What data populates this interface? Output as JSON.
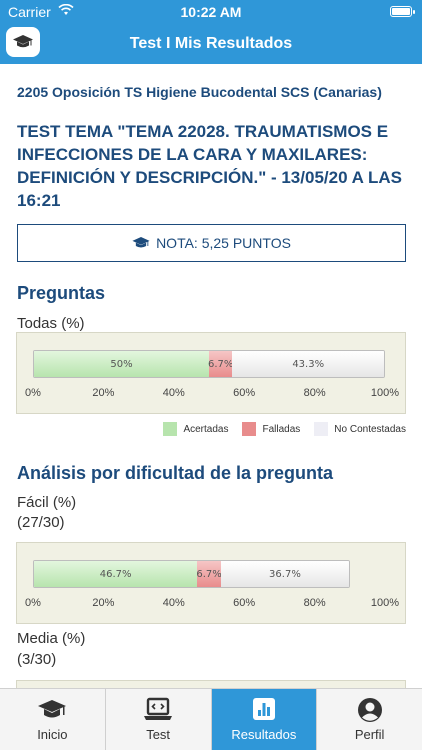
{
  "status": {
    "carrier": "Carrier",
    "time": "10:22 AM"
  },
  "nav": {
    "title": "Test I Mis Resultados",
    "home_icon": "mortarboard-icon"
  },
  "course": "2205 Oposición TS Higiene Bucodental SCS (Canarias)",
  "test_title": "TEST TEMA \"TEMA 22028. TRAUMATISMOS E INFECCIONES DE LA CARA Y MAXILARES: DEFINICIÓN Y DESCRIPCIÓN.\" - 13/05/20 A LAS 16:21",
  "nota": "NOTA: 5,25 PUNTOS",
  "preguntas": {
    "heading": "Preguntas",
    "label": "Todas (%)"
  },
  "legend": {
    "acertadas": "Acertadas",
    "falladas": "Falladas",
    "no_contestadas": "No Contestadas"
  },
  "dificultad": {
    "heading": "Análisis por dificultad de la pregunta",
    "facil_label": "Fácil (%)",
    "facil_count": "(27/30)",
    "media_label": "Media (%)",
    "media_count": "(3/30)"
  },
  "colors": {
    "acertadas": "#b7e4ad",
    "falladas": "#e88c8c",
    "no_contestadas": "#eeeef5",
    "primary": "#2f97d8",
    "text": "#1d4b7c"
  },
  "chart_data": [
    {
      "type": "bar",
      "orientation": "horizontal-stacked",
      "categories": [
        "Todas"
      ],
      "series": [
        {
          "name": "Acertadas",
          "values": [
            50
          ],
          "label": "50%"
        },
        {
          "name": "Falladas",
          "values": [
            6.7
          ],
          "label": "6.7%"
        },
        {
          "name": "No Contestadas",
          "values": [
            43.3
          ],
          "label": "43.3%"
        }
      ],
      "xlim": [
        0,
        100
      ],
      "xticks": [
        "0%",
        "20%",
        "40%",
        "60%",
        "80%",
        "100%"
      ]
    },
    {
      "type": "bar",
      "orientation": "horizontal-stacked",
      "categories": [
        "Fácil"
      ],
      "series": [
        {
          "name": "Acertadas",
          "values": [
            46.7
          ],
          "label": "46.7%"
        },
        {
          "name": "Falladas",
          "values": [
            6.7
          ],
          "label": "6.7%"
        },
        {
          "name": "No Contestadas",
          "values": [
            36.7
          ],
          "label": "36.7%"
        }
      ],
      "xlim": [
        0,
        100
      ],
      "xticks": [
        "0%",
        "20%",
        "40%",
        "60%",
        "80%",
        "100%"
      ]
    }
  ],
  "tabs": [
    {
      "label": "Inicio",
      "icon": "mortarboard-icon"
    },
    {
      "label": "Test",
      "icon": "laptop-code-icon"
    },
    {
      "label": "Resultados",
      "icon": "bar-chart-icon",
      "active": true
    },
    {
      "label": "Perfil",
      "icon": "user-circle-icon"
    }
  ]
}
